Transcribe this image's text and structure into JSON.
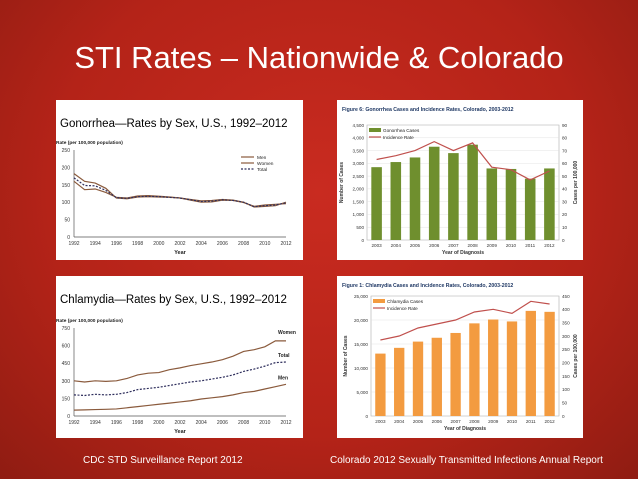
{
  "slide": {
    "title": "STI Rates – Nationwide & Colorado",
    "footer_left": "CDC STD Surveillance Report 2012",
    "footer_right": "Colorado 2012 Sexually Transmitted Infections Annual Report"
  },
  "captions": {
    "gono_us": "Gonorrhea—Rates by Sex, U.S., 1992–2012",
    "chlam_us": "Chlamydia—Rates by Sex, U.S., 1992–2012"
  },
  "colors": {
    "background": "#c0281d",
    "men": "#8a5a3c",
    "women": "#8a5a3c",
    "total": "#2e2e5c",
    "green_bar": "#6f8f2e",
    "orange_bar": "#f39b40",
    "rate_line": "#c0504d"
  },
  "chart_data": [
    {
      "id": "gono_us",
      "type": "line",
      "title": "",
      "ylabel": "Rate (per 100,000 population)",
      "xlabel": "Year",
      "x": [
        1992,
        1993,
        1994,
        1995,
        1996,
        1997,
        1998,
        1999,
        2000,
        2001,
        2002,
        2003,
        2004,
        2005,
        2006,
        2007,
        2008,
        2009,
        2010,
        2011,
        2012
      ],
      "xticks": [
        "1992",
        "1994",
        "1996",
        "1998",
        "2000",
        "2002",
        "2004",
        "2006",
        "2008",
        "2010",
        "2012"
      ],
      "yticks": [
        "0",
        "50",
        "100",
        "150",
        "200",
        "250"
      ],
      "ylim": [
        0,
        250
      ],
      "legend_position": "right",
      "series": [
        {
          "name": "Men",
          "values": [
            182,
            160,
            155,
            140,
            112,
            110,
            115,
            116,
            115,
            114,
            112,
            108,
            104,
            105,
            108,
            106,
            100,
            86,
            88,
            90,
            100
          ]
        },
        {
          "name": "Women",
          "values": [
            160,
            136,
            138,
            128,
            114,
            112,
            118,
            119,
            117,
            115,
            112,
            106,
            100,
            101,
            106,
            105,
            99,
            88,
            92,
            94,
            96
          ]
        },
        {
          "name": "Total",
          "values": [
            170,
            148,
            147,
            134,
            113,
            111,
            116,
            117,
            116,
            114,
            112,
            107,
            102,
            103,
            107,
            105,
            100,
            87,
            90,
            92,
            98
          ]
        }
      ]
    },
    {
      "id": "gono_co",
      "type": "bar",
      "title": "Figure 6: Gonorrhea Cases and Incidence Rates, Colorado, 2003-2012",
      "xlabel": "Year of Diagnosis",
      "ylabel": "Number of Cases",
      "y2label": "Cases per 100,000",
      "categories": [
        "2003",
        "2004",
        "2005",
        "2006",
        "2007",
        "2008",
        "2009",
        "2010",
        "2011",
        "2012"
      ],
      "yticks": [
        "0",
        "500",
        "1,000",
        "1,500",
        "2,000",
        "2,500",
        "3,000",
        "3,500",
        "4,000",
        "4,500"
      ],
      "y2ticks": [
        "0",
        "10",
        "20",
        "30",
        "40",
        "50",
        "60",
        "70",
        "80",
        "90"
      ],
      "ylim": [
        0,
        4500
      ],
      "y2lim": [
        0,
        90
      ],
      "legend_position": "top-left",
      "series": [
        {
          "name": "Gonorrhea Cases",
          "values": [
            2850,
            3050,
            3230,
            3650,
            3400,
            3730,
            2800,
            2780,
            2400,
            2800
          ]
        },
        {
          "name": "Incidence Rate",
          "values": [
            63,
            66,
            70,
            77,
            70,
            76,
            57,
            55,
            47,
            54
          ]
        }
      ]
    },
    {
      "id": "chlam_us",
      "type": "line",
      "title": "",
      "ylabel": "Rate (per 100,000 population)",
      "xlabel": "Year",
      "x": [
        1992,
        1993,
        1994,
        1995,
        1996,
        1997,
        1998,
        1999,
        2000,
        2001,
        2002,
        2003,
        2004,
        2005,
        2006,
        2007,
        2008,
        2009,
        2010,
        2011,
        2012
      ],
      "xticks": [
        "1992",
        "1994",
        "1996",
        "1998",
        "2000",
        "2002",
        "2004",
        "2006",
        "2008",
        "2010",
        "2012"
      ],
      "yticks": [
        "0",
        "150",
        "300",
        "450",
        "600",
        "750"
      ],
      "ylim": [
        0,
        750
      ],
      "series": [
        {
          "name": "Women",
          "values": [
            300,
            290,
            300,
            295,
            300,
            320,
            350,
            365,
            370,
            395,
            410,
            430,
            445,
            460,
            480,
            510,
            550,
            565,
            590,
            640,
            640
          ]
        },
        {
          "name": "Total",
          "values": [
            180,
            175,
            185,
            180,
            185,
            200,
            225,
            235,
            245,
            260,
            275,
            290,
            300,
            315,
            330,
            350,
            380,
            400,
            425,
            455,
            460
          ]
        },
        {
          "name": "Men",
          "values": [
            50,
            52,
            55,
            57,
            60,
            70,
            80,
            90,
            100,
            110,
            120,
            130,
            145,
            155,
            165,
            180,
            200,
            210,
            230,
            250,
            270
          ]
        }
      ]
    },
    {
      "id": "chlam_co",
      "type": "bar",
      "title": "Figure 1: Chlamydia Cases and Incidence Rates, Colorado, 2003-2012",
      "xlabel": "Year of Diagnosis",
      "ylabel": "Number of Cases",
      "y2label": "Cases per 100,000",
      "categories": [
        "2003",
        "2004",
        "2005",
        "2006",
        "2007",
        "2008",
        "2009",
        "2010",
        "2011",
        "2012"
      ],
      "yticks": [
        "0",
        "5,000",
        "10,000",
        "15,000",
        "20,000",
        "25,000"
      ],
      "y2ticks": [
        "0",
        "50",
        "100",
        "150",
        "200",
        "250",
        "300",
        "350",
        "400",
        "450"
      ],
      "ylim": [
        0,
        25000
      ],
      "y2lim": [
        0,
        450
      ],
      "legend_position": "top-left",
      "series": [
        {
          "name": "Chlamydia Cases",
          "values": [
            13000,
            14200,
            15500,
            16300,
            17300,
            19300,
            20100,
            19700,
            21900,
            21700
          ]
        },
        {
          "name": "Incidence Rate",
          "values": [
            285,
            300,
            330,
            345,
            360,
            390,
            400,
            385,
            430,
            420
          ]
        }
      ]
    }
  ]
}
